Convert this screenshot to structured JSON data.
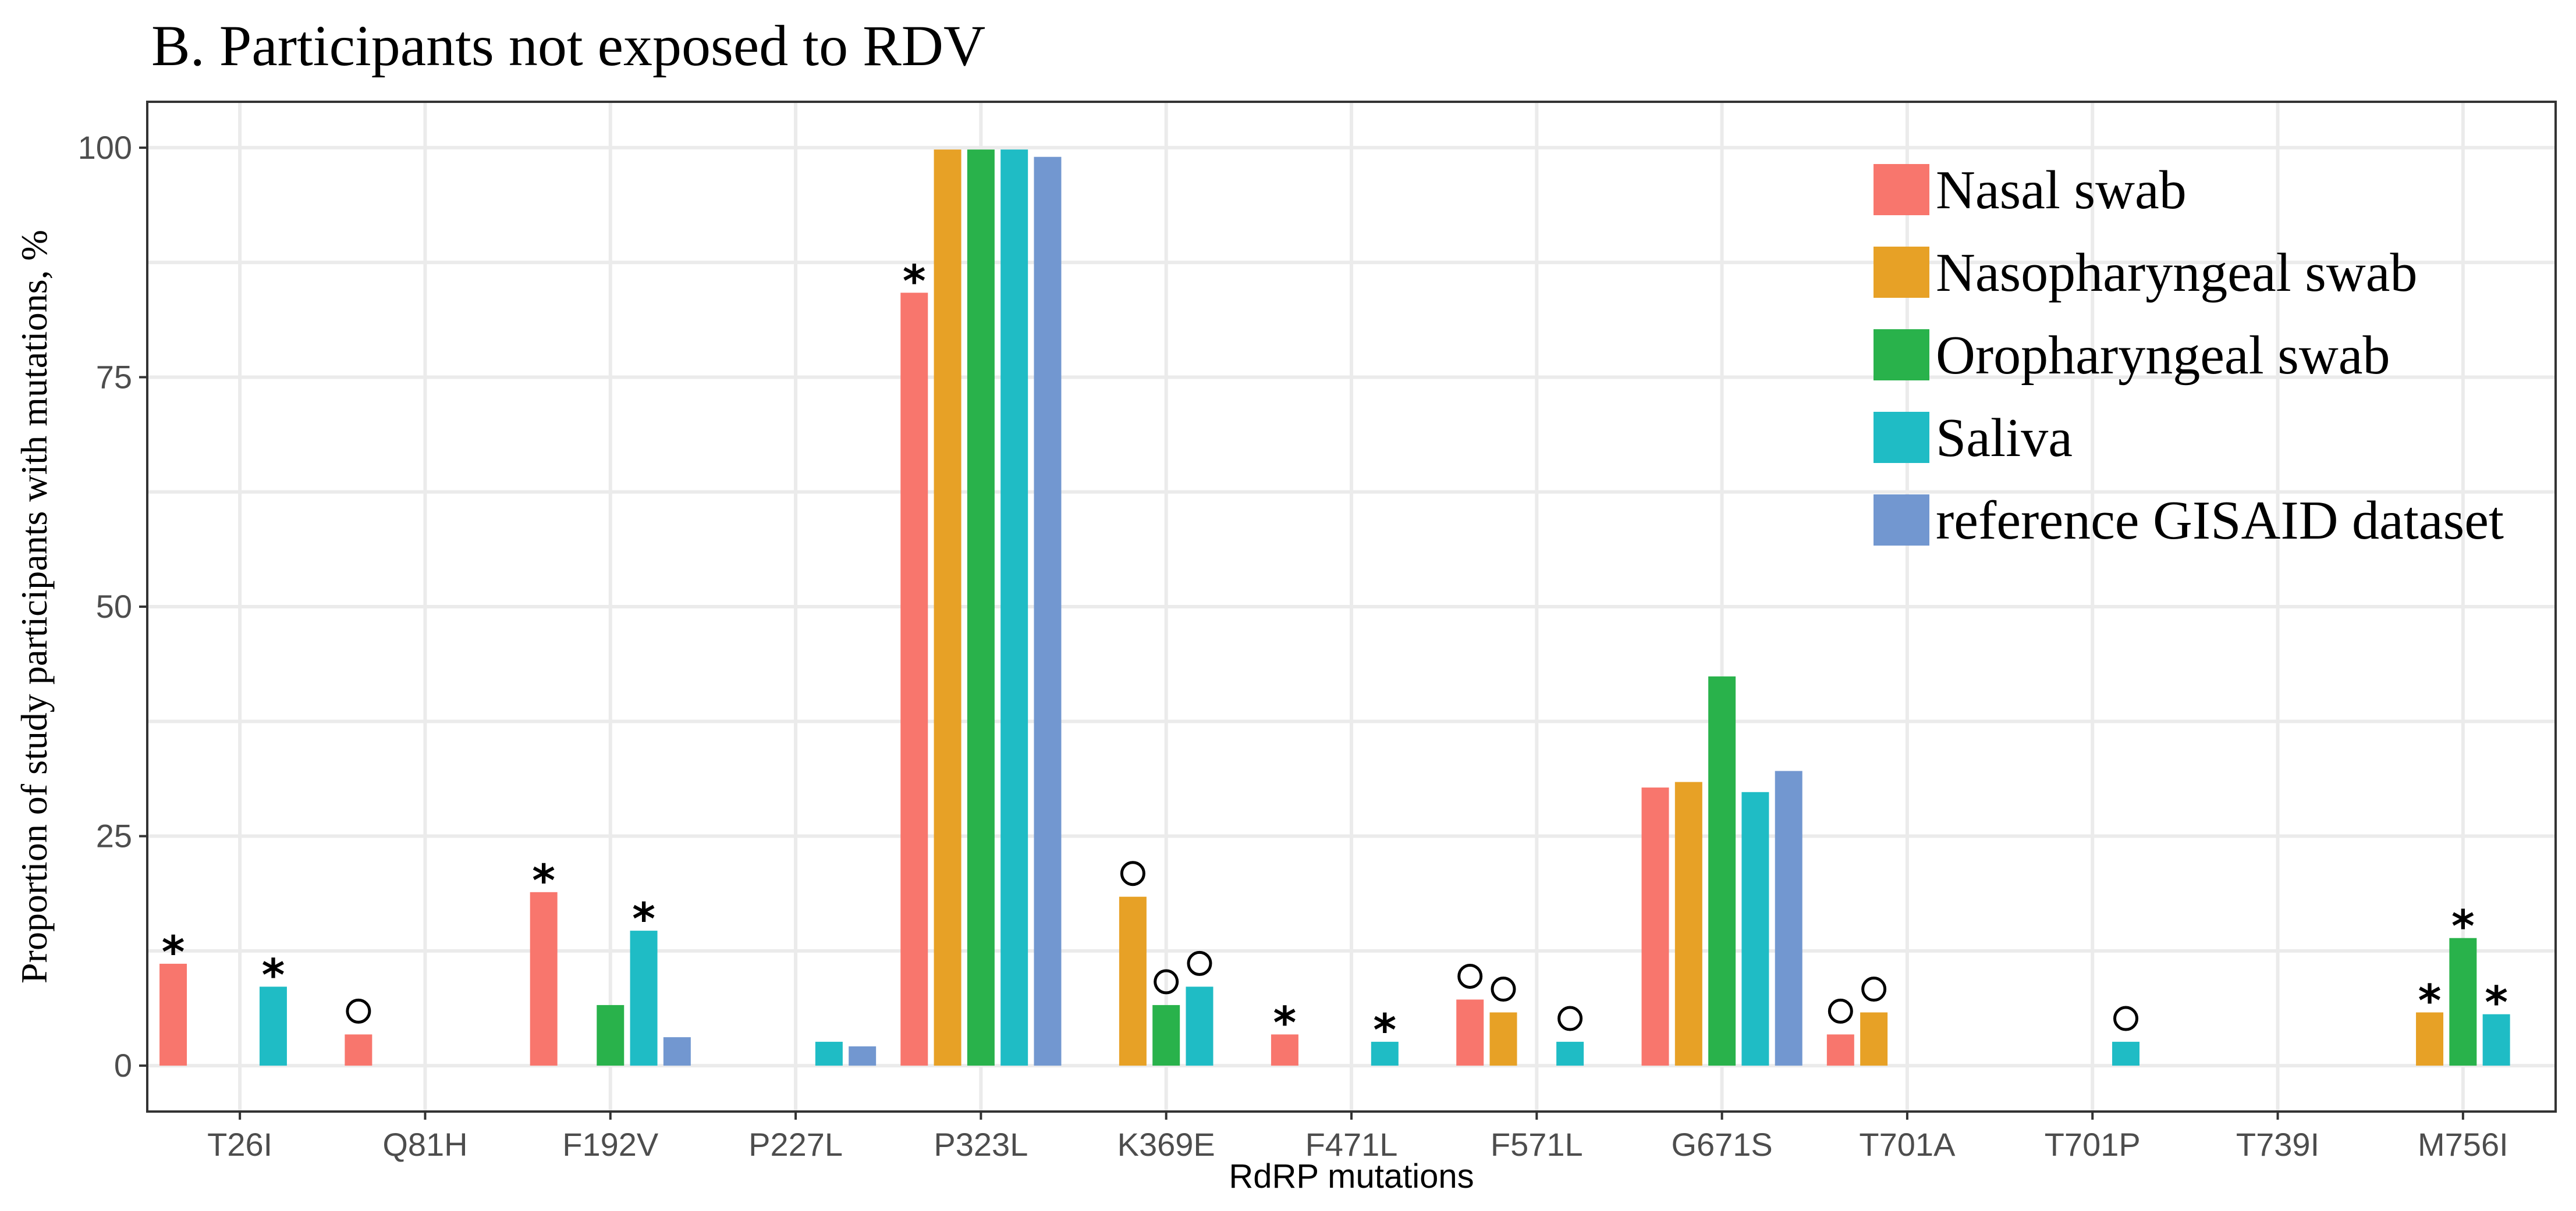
{
  "chart_data": {
    "type": "bar",
    "title": "B. Participants not exposed to RDV",
    "xlabel": "RdRP mutations",
    "ylabel": "Proportion of study participants with mutations, %",
    "ylim": [
      -5,
      105
    ],
    "yticks": [
      0,
      25,
      50,
      75,
      100
    ],
    "grid": true,
    "legend_position": "top-right",
    "categories": [
      "T26I",
      "Q81H",
      "F192V",
      "P227L",
      "P323L",
      "K369E",
      "F471L",
      "F571L",
      "G671S",
      "T701A",
      "T701P",
      "T739I",
      "M756I"
    ],
    "series": [
      {
        "name": "Nasal swab",
        "color": "#F8766D",
        "values": [
          11.1,
          3.4,
          18.9,
          0,
          84.2,
          0,
          3.4,
          7.2,
          30.3,
          3.4,
          0,
          0,
          0
        ],
        "annotations": [
          "*",
          "o",
          "*",
          "",
          "*",
          "",
          "*",
          "o",
          "",
          "o",
          "",
          "",
          ""
        ]
      },
      {
        "name": "Nasopharyngeal swab",
        "color": "#E7A126",
        "values": [
          0,
          0,
          0,
          0,
          99.8,
          18.4,
          0,
          5.8,
          30.9,
          5.8,
          0,
          0,
          5.8
        ],
        "annotations": [
          "",
          "",
          "",
          "",
          "",
          "o",
          "",
          "o",
          "",
          "o",
          "",
          "",
          "*"
        ]
      },
      {
        "name": "Oropharyngeal swab",
        "color": "#29B24B",
        "values": [
          0,
          0,
          6.6,
          0,
          99.8,
          6.6,
          0,
          0,
          42.4,
          0,
          0,
          0,
          13.9
        ],
        "annotations": [
          "",
          "",
          "",
          "",
          "",
          "o",
          "",
          "",
          "",
          "",
          "",
          "",
          "*"
        ]
      },
      {
        "name": "Saliva",
        "color": "#1FBCC5",
        "values": [
          8.6,
          0,
          14.7,
          2.6,
          99.8,
          8.6,
          2.6,
          2.6,
          29.8,
          0,
          2.6,
          0,
          5.6
        ],
        "annotations": [
          "*",
          "",
          "*",
          "",
          "",
          "o",
          "*",
          "o",
          "",
          "",
          "o",
          "",
          "*"
        ]
      },
      {
        "name": "reference GISAID dataset",
        "color": "#7297D0",
        "values": [
          0,
          0,
          3.1,
          2.1,
          99.0,
          0,
          0,
          0,
          32.1,
          0,
          0,
          0,
          0
        ],
        "annotations": [
          "",
          "",
          "",
          "",
          "",
          "",
          "",
          "",
          "",
          "",
          "",
          "",
          ""
        ]
      }
    ]
  }
}
